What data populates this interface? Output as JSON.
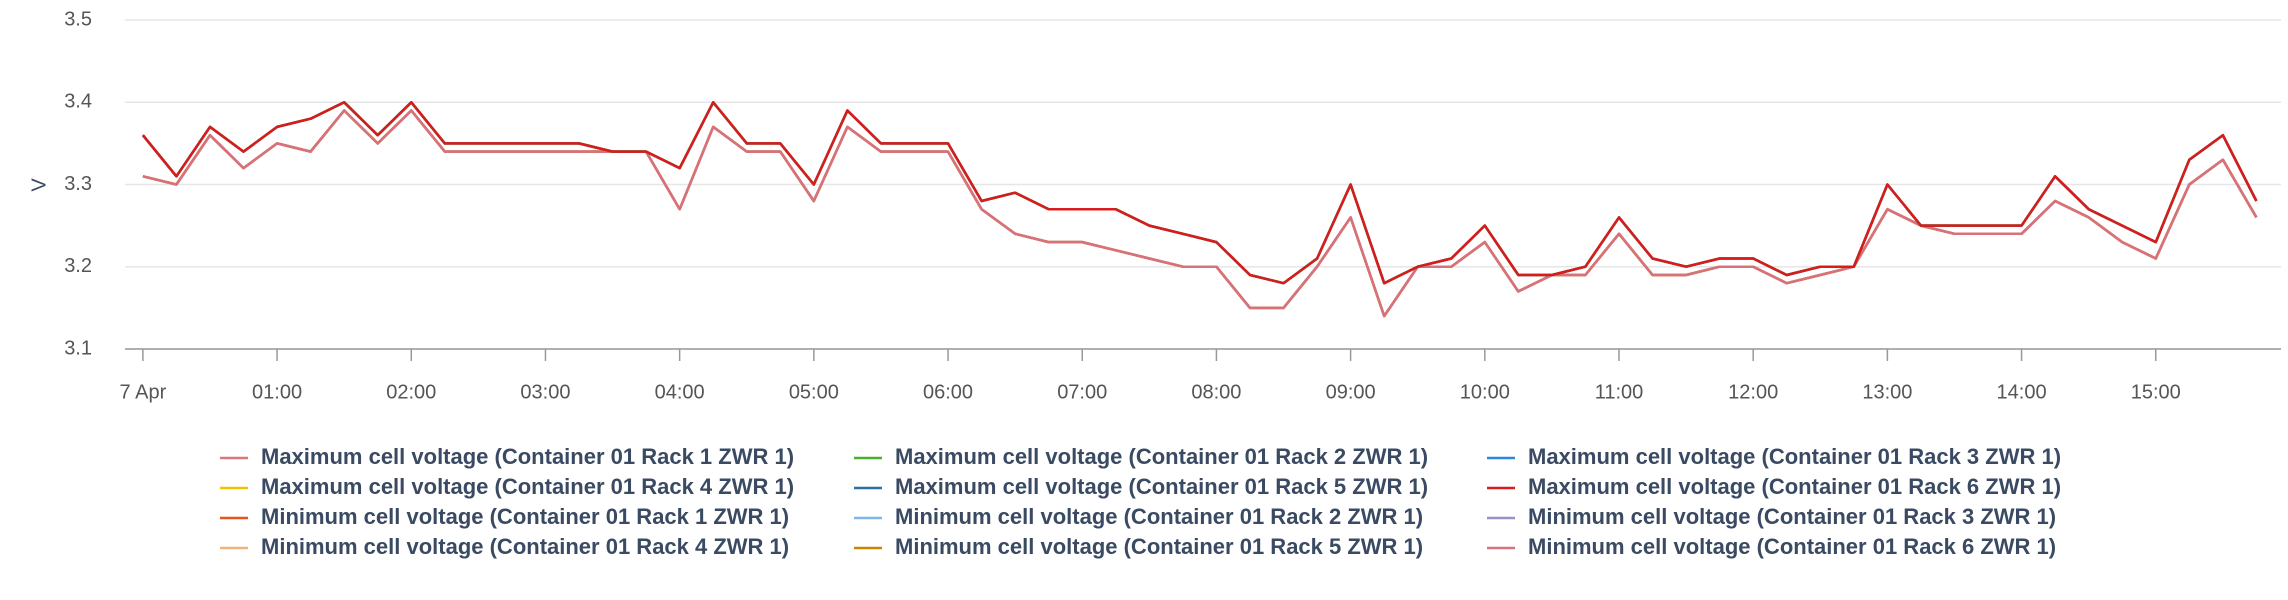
{
  "chart_data": {
    "type": "line",
    "ylabel": "V",
    "x": [
      0,
      15,
      30,
      45,
      60,
      75,
      90,
      105,
      120,
      135,
      150,
      165,
      180,
      195,
      210,
      225,
      240,
      255,
      270,
      285,
      300,
      315,
      330,
      345,
      360,
      375,
      390,
      405,
      420,
      435,
      450,
      465,
      480,
      495,
      510,
      525,
      540,
      555,
      570,
      585,
      600,
      615,
      630,
      645,
      660,
      675,
      690,
      705,
      720,
      735,
      750,
      765,
      780,
      795,
      810,
      825,
      840,
      855,
      870,
      885,
      900,
      915,
      930,
      945
    ],
    "xlim": [
      -8,
      956
    ],
    "xticks": [
      {
        "value": 0,
        "label": "7 Apr"
      },
      {
        "value": 60,
        "label": "01:00"
      },
      {
        "value": 120,
        "label": "02:00"
      },
      {
        "value": 180,
        "label": "03:00"
      },
      {
        "value": 240,
        "label": "04:00"
      },
      {
        "value": 300,
        "label": "05:00"
      },
      {
        "value": 360,
        "label": "06:00"
      },
      {
        "value": 420,
        "label": "07:00"
      },
      {
        "value": 480,
        "label": "08:00"
      },
      {
        "value": 540,
        "label": "09:00"
      },
      {
        "value": 600,
        "label": "10:00"
      },
      {
        "value": 660,
        "label": "11:00"
      },
      {
        "value": 720,
        "label": "12:00"
      },
      {
        "value": 780,
        "label": "13:00"
      },
      {
        "value": 840,
        "label": "14:00"
      },
      {
        "value": 900,
        "label": "15:00"
      }
    ],
    "ylim": [
      3.1,
      3.5
    ],
    "yticks": [
      3.1,
      3.2,
      3.3,
      3.4,
      3.5
    ],
    "grid": true,
    "series": [
      {
        "name": "Maximum cell voltage (Container 01 Rack 1 ZWR 1)",
        "color": "#d9797b",
        "values": [
          3.36,
          3.31,
          3.37,
          3.34,
          3.37,
          3.38,
          3.4,
          3.36,
          3.4,
          3.35,
          3.35,
          3.35,
          3.35,
          3.35,
          3.34,
          3.34,
          3.32,
          3.4,
          3.35,
          3.35,
          3.3,
          3.39,
          3.35,
          3.35,
          3.35,
          3.28,
          3.29,
          3.27,
          3.27,
          3.27,
          3.25,
          3.24,
          3.23,
          3.19,
          3.18,
          3.21,
          3.3,
          3.18,
          3.2,
          3.21,
          3.25,
          3.19,
          3.19,
          3.2,
          3.26,
          3.21,
          3.2,
          3.21,
          3.21,
          3.19,
          3.2,
          3.2,
          3.3,
          3.25,
          3.25,
          3.25,
          3.25,
          3.31,
          3.27,
          3.25,
          3.23,
          3.33,
          3.36,
          3.28
        ]
      },
      {
        "name": "Maximum cell voltage (Container 01 Rack 2 ZWR 1)",
        "color": "#4caf2c",
        "values": [
          3.36,
          3.31,
          3.37,
          3.34,
          3.37,
          3.38,
          3.4,
          3.36,
          3.4,
          3.35,
          3.35,
          3.35,
          3.35,
          3.35,
          3.34,
          3.34,
          3.32,
          3.4,
          3.35,
          3.35,
          3.3,
          3.39,
          3.35,
          3.35,
          3.35,
          3.28,
          3.29,
          3.27,
          3.27,
          3.27,
          3.25,
          3.24,
          3.23,
          3.19,
          3.18,
          3.21,
          3.3,
          3.18,
          3.2,
          3.21,
          3.25,
          3.19,
          3.19,
          3.2,
          3.26,
          3.21,
          3.2,
          3.21,
          3.21,
          3.19,
          3.2,
          3.2,
          3.3,
          3.25,
          3.25,
          3.25,
          3.25,
          3.31,
          3.27,
          3.25,
          3.23,
          3.33,
          3.36,
          3.28
        ]
      },
      {
        "name": "Maximum cell voltage (Container 01 Rack 3 ZWR 1)",
        "color": "#2e86de",
        "values": [
          3.36,
          3.31,
          3.37,
          3.34,
          3.37,
          3.38,
          3.4,
          3.36,
          3.4,
          3.35,
          3.35,
          3.35,
          3.35,
          3.35,
          3.34,
          3.34,
          3.32,
          3.4,
          3.35,
          3.35,
          3.3,
          3.39,
          3.35,
          3.35,
          3.35,
          3.28,
          3.29,
          3.27,
          3.27,
          3.27,
          3.25,
          3.24,
          3.23,
          3.19,
          3.18,
          3.21,
          3.3,
          3.18,
          3.2,
          3.21,
          3.25,
          3.19,
          3.19,
          3.2,
          3.26,
          3.21,
          3.2,
          3.21,
          3.21,
          3.19,
          3.2,
          3.2,
          3.3,
          3.25,
          3.25,
          3.25,
          3.25,
          3.31,
          3.27,
          3.25,
          3.23,
          3.33,
          3.36,
          3.28
        ]
      },
      {
        "name": "Maximum cell voltage (Container 01 Rack 4 ZWR 1)",
        "color": "#f2c200",
        "values": [
          3.36,
          3.31,
          3.37,
          3.34,
          3.37,
          3.38,
          3.4,
          3.36,
          3.4,
          3.35,
          3.35,
          3.35,
          3.35,
          3.35,
          3.34,
          3.34,
          3.32,
          3.4,
          3.35,
          3.35,
          3.3,
          3.39,
          3.35,
          3.35,
          3.35,
          3.28,
          3.29,
          3.27,
          3.27,
          3.27,
          3.25,
          3.24,
          3.23,
          3.19,
          3.18,
          3.21,
          3.3,
          3.18,
          3.2,
          3.21,
          3.25,
          3.19,
          3.19,
          3.2,
          3.26,
          3.21,
          3.2,
          3.21,
          3.21,
          3.19,
          3.2,
          3.2,
          3.3,
          3.25,
          3.25,
          3.25,
          3.25,
          3.31,
          3.27,
          3.25,
          3.23,
          3.33,
          3.36,
          3.28
        ]
      },
      {
        "name": "Maximum cell voltage (Container 01 Rack 5 ZWR 1)",
        "color": "#2f6f9f",
        "values": [
          3.36,
          3.31,
          3.37,
          3.34,
          3.37,
          3.38,
          3.4,
          3.36,
          3.4,
          3.35,
          3.35,
          3.35,
          3.35,
          3.35,
          3.34,
          3.34,
          3.32,
          3.4,
          3.35,
          3.35,
          3.3,
          3.39,
          3.35,
          3.35,
          3.35,
          3.28,
          3.29,
          3.27,
          3.27,
          3.27,
          3.25,
          3.24,
          3.23,
          3.19,
          3.18,
          3.21,
          3.3,
          3.18,
          3.2,
          3.21,
          3.25,
          3.19,
          3.19,
          3.2,
          3.26,
          3.21,
          3.2,
          3.21,
          3.21,
          3.19,
          3.2,
          3.2,
          3.3,
          3.25,
          3.25,
          3.25,
          3.25,
          3.31,
          3.27,
          3.25,
          3.23,
          3.33,
          3.36,
          3.28
        ]
      },
      {
        "name": "Maximum cell voltage (Container 01 Rack 6 ZWR 1)",
        "color": "#d81b1b",
        "values": [
          3.36,
          3.31,
          3.37,
          3.34,
          3.37,
          3.38,
          3.4,
          3.36,
          3.4,
          3.35,
          3.35,
          3.35,
          3.35,
          3.35,
          3.34,
          3.34,
          3.32,
          3.4,
          3.35,
          3.35,
          3.3,
          3.39,
          3.35,
          3.35,
          3.35,
          3.28,
          3.29,
          3.27,
          3.27,
          3.27,
          3.25,
          3.24,
          3.23,
          3.19,
          3.18,
          3.21,
          3.3,
          3.18,
          3.2,
          3.21,
          3.25,
          3.19,
          3.19,
          3.2,
          3.26,
          3.21,
          3.2,
          3.21,
          3.21,
          3.19,
          3.2,
          3.2,
          3.3,
          3.25,
          3.25,
          3.25,
          3.25,
          3.31,
          3.27,
          3.25,
          3.23,
          3.33,
          3.36,
          3.28
        ]
      },
      {
        "name": "Minimum cell voltage (Container 01 Rack 1 ZWR 1)",
        "color": "#e8541e",
        "values": [
          3.31,
          3.3,
          3.36,
          3.32,
          3.35,
          3.34,
          3.39,
          3.35,
          3.39,
          3.34,
          3.34,
          3.34,
          3.34,
          3.34,
          3.34,
          3.34,
          3.27,
          3.37,
          3.34,
          3.34,
          3.28,
          3.37,
          3.34,
          3.34,
          3.34,
          3.27,
          3.24,
          3.23,
          3.23,
          3.22,
          3.21,
          3.2,
          3.2,
          3.15,
          3.15,
          3.2,
          3.26,
          3.14,
          3.2,
          3.2,
          3.23,
          3.17,
          3.19,
          3.19,
          3.24,
          3.19,
          3.19,
          3.2,
          3.2,
          3.18,
          3.19,
          3.2,
          3.27,
          3.25,
          3.24,
          3.24,
          3.24,
          3.28,
          3.26,
          3.23,
          3.21,
          3.3,
          3.33,
          3.26
        ]
      },
      {
        "name": "Minimum cell voltage (Container 01 Rack 2 ZWR 1)",
        "color": "#7fb8e8",
        "values": [
          3.31,
          3.3,
          3.36,
          3.32,
          3.35,
          3.34,
          3.39,
          3.35,
          3.39,
          3.34,
          3.34,
          3.34,
          3.34,
          3.34,
          3.34,
          3.34,
          3.27,
          3.37,
          3.34,
          3.34,
          3.28,
          3.37,
          3.34,
          3.34,
          3.34,
          3.27,
          3.24,
          3.23,
          3.23,
          3.22,
          3.21,
          3.2,
          3.2,
          3.15,
          3.15,
          3.2,
          3.26,
          3.14,
          3.2,
          3.2,
          3.23,
          3.17,
          3.19,
          3.19,
          3.24,
          3.19,
          3.19,
          3.2,
          3.2,
          3.18,
          3.19,
          3.2,
          3.27,
          3.25,
          3.24,
          3.24,
          3.24,
          3.28,
          3.26,
          3.23,
          3.21,
          3.3,
          3.33,
          3.26
        ]
      },
      {
        "name": "Minimum cell voltage (Container 01 Rack 3 ZWR 1)",
        "color": "#9e8fc8",
        "values": [
          3.31,
          3.3,
          3.36,
          3.32,
          3.35,
          3.34,
          3.39,
          3.35,
          3.39,
          3.34,
          3.34,
          3.34,
          3.34,
          3.34,
          3.34,
          3.34,
          3.27,
          3.37,
          3.34,
          3.34,
          3.28,
          3.37,
          3.34,
          3.34,
          3.34,
          3.27,
          3.24,
          3.23,
          3.23,
          3.22,
          3.21,
          3.2,
          3.2,
          3.15,
          3.15,
          3.2,
          3.26,
          3.14,
          3.2,
          3.2,
          3.23,
          3.17,
          3.19,
          3.19,
          3.24,
          3.19,
          3.19,
          3.2,
          3.2,
          3.18,
          3.19,
          3.2,
          3.27,
          3.25,
          3.24,
          3.24,
          3.24,
          3.28,
          3.26,
          3.23,
          3.21,
          3.3,
          3.33,
          3.26
        ]
      },
      {
        "name": "Minimum cell voltage (Container 01 Rack 4 ZWR 1)",
        "color": "#f2b27a",
        "values": [
          3.31,
          3.3,
          3.36,
          3.32,
          3.35,
          3.34,
          3.39,
          3.35,
          3.39,
          3.34,
          3.34,
          3.34,
          3.34,
          3.34,
          3.34,
          3.34,
          3.27,
          3.37,
          3.34,
          3.34,
          3.28,
          3.37,
          3.34,
          3.34,
          3.34,
          3.27,
          3.24,
          3.23,
          3.23,
          3.22,
          3.21,
          3.2,
          3.2,
          3.15,
          3.15,
          3.2,
          3.26,
          3.14,
          3.2,
          3.2,
          3.23,
          3.17,
          3.19,
          3.19,
          3.24,
          3.19,
          3.19,
          3.2,
          3.2,
          3.18,
          3.19,
          3.2,
          3.27,
          3.25,
          3.24,
          3.24,
          3.24,
          3.28,
          3.26,
          3.23,
          3.21,
          3.3,
          3.33,
          3.26
        ]
      },
      {
        "name": "Minimum cell voltage (Container 01 Rack 5 ZWR 1)",
        "color": "#c98500",
        "values": [
          3.31,
          3.3,
          3.36,
          3.32,
          3.35,
          3.34,
          3.39,
          3.35,
          3.39,
          3.34,
          3.34,
          3.34,
          3.34,
          3.34,
          3.34,
          3.34,
          3.27,
          3.37,
          3.34,
          3.34,
          3.28,
          3.37,
          3.34,
          3.34,
          3.34,
          3.27,
          3.24,
          3.23,
          3.23,
          3.22,
          3.21,
          3.2,
          3.2,
          3.15,
          3.15,
          3.2,
          3.26,
          3.14,
          3.2,
          3.2,
          3.23,
          3.17,
          3.19,
          3.19,
          3.24,
          3.19,
          3.19,
          3.2,
          3.2,
          3.18,
          3.19,
          3.2,
          3.27,
          3.25,
          3.24,
          3.24,
          3.24,
          3.28,
          3.26,
          3.23,
          3.21,
          3.3,
          3.33,
          3.26
        ]
      },
      {
        "name": "Minimum cell voltage (Container 01 Rack 6 ZWR 1)",
        "color": "#d8707e",
        "values": [
          3.31,
          3.3,
          3.36,
          3.32,
          3.35,
          3.34,
          3.39,
          3.35,
          3.39,
          3.34,
          3.34,
          3.34,
          3.34,
          3.34,
          3.34,
          3.34,
          3.27,
          3.37,
          3.34,
          3.34,
          3.28,
          3.37,
          3.34,
          3.34,
          3.34,
          3.27,
          3.24,
          3.23,
          3.23,
          3.22,
          3.21,
          3.2,
          3.2,
          3.15,
          3.15,
          3.2,
          3.26,
          3.14,
          3.2,
          3.2,
          3.23,
          3.17,
          3.19,
          3.19,
          3.24,
          3.19,
          3.19,
          3.2,
          3.2,
          3.18,
          3.19,
          3.2,
          3.27,
          3.25,
          3.24,
          3.24,
          3.24,
          3.28,
          3.26,
          3.23,
          3.21,
          3.3,
          3.33,
          3.26
        ]
      }
    ]
  }
}
